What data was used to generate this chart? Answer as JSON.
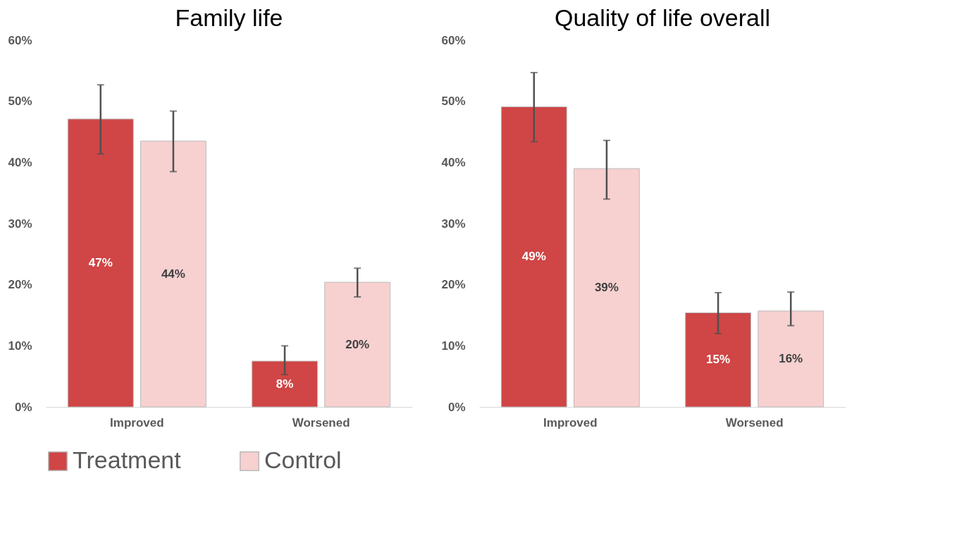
{
  "chart_data": [
    {
      "type": "bar",
      "title": "Family life",
      "categories": [
        "Improved",
        "Worsened"
      ],
      "series": [
        {
          "name": "Treatment",
          "color": "#d04545",
          "values": [
            47.1,
            7.5
          ],
          "errors": [
            [
              41.4,
              52.7
            ],
            [
              5.3,
              10.0
            ]
          ],
          "value_labels": [
            "47%",
            "8%"
          ]
        },
        {
          "name": "Control",
          "color": "#f7d0d0",
          "values": [
            43.5,
            20.4
          ],
          "errors": [
            [
              38.5,
              48.4
            ],
            [
              18.0,
              22.7
            ]
          ],
          "value_labels": [
            "44%",
            "20%"
          ]
        }
      ],
      "ylim": [
        0,
        60
      ],
      "yticks": [
        {
          "value": 0,
          "label": "0%"
        },
        {
          "value": 10,
          "label": "10%"
        },
        {
          "value": 20,
          "label": "20%"
        },
        {
          "value": 30,
          "label": "30%"
        },
        {
          "value": 40,
          "label": "40%"
        },
        {
          "value": 50,
          "label": "50%"
        },
        {
          "value": 60,
          "label": "60%"
        }
      ],
      "grid": false,
      "legend": "bottom"
    },
    {
      "type": "bar",
      "title": "Quality of life overall",
      "categories": [
        "Improved",
        "Worsened"
      ],
      "series": [
        {
          "color": "#d04545",
          "values": [
            49.1,
            15.4
          ],
          "errors": [
            [
              43.4,
              54.7
            ],
            [
              12.0,
              18.7
            ]
          ],
          "value_labels": [
            "49%",
            "15%"
          ]
        },
        {
          "color": "#f7d0d0",
          "values": [
            39.0,
            15.7
          ],
          "errors": [
            [
              34.0,
              43.6
            ],
            [
              13.3,
              18.8
            ]
          ],
          "value_labels": [
            "39%",
            "16%"
          ]
        }
      ],
      "ylim": [
        0,
        60
      ],
      "yticks": [
        {
          "value": 0,
          "label": "0%"
        },
        {
          "value": 10,
          "label": "10%"
        },
        {
          "value": 20,
          "label": "20%"
        },
        {
          "value": 30,
          "label": "30%"
        },
        {
          "value": 40,
          "label": "40%"
        },
        {
          "value": 50,
          "label": "50%"
        },
        {
          "value": 60,
          "label": "60%"
        }
      ],
      "grid": false,
      "legend": false
    }
  ]
}
